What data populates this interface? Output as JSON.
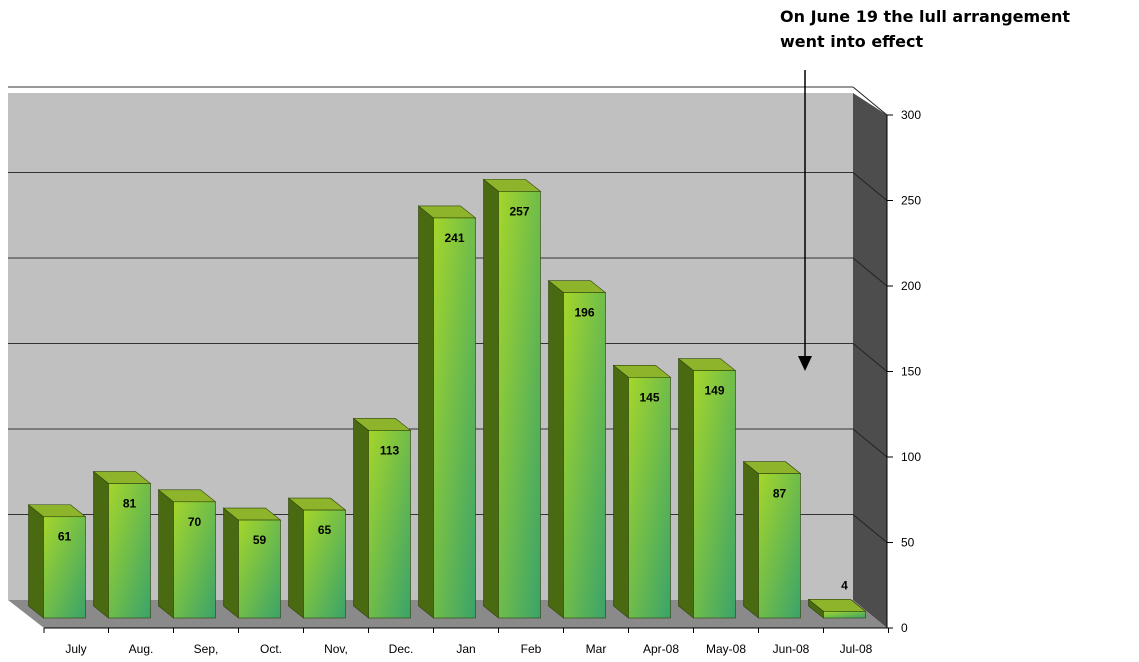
{
  "annotation": {
    "line1": "On June 19 the lull arrangement",
    "line2": "went into effect"
  },
  "chart_data": {
    "type": "bar",
    "categories": [
      "July",
      "Aug.",
      "Sep,",
      "Oct.",
      "Nov,",
      "Dec.",
      "Jan",
      "Feb",
      "Mar",
      "Apr-08",
      "May-08",
      "Jun-08",
      "Jul-08"
    ],
    "values": [
      61,
      81,
      70,
      59,
      65,
      113,
      241,
      257,
      196,
      145,
      149,
      87,
      4
    ],
    "ylim": [
      0,
      300
    ],
    "yticks": [
      0,
      50,
      100,
      150,
      200,
      250,
      300
    ],
    "y_axis_side": "right",
    "grid": true,
    "legend": "none",
    "style": "3d",
    "annotation_points_to": "Jun-08"
  },
  "colors": {
    "wall": "#c0c0c0",
    "side_wall": "#4d4d4d",
    "floor": "#8a8a8a",
    "bar_top": "#8db42a",
    "bar_side": "#4a6a12",
    "bar_front_light": "#a5d62a",
    "bar_front_dark": "#3aa36a"
  }
}
